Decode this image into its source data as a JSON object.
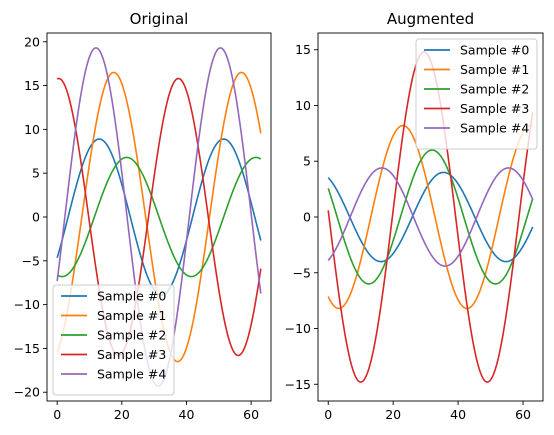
{
  "chart_data": [
    {
      "type": "line",
      "title": "Original",
      "xlim": [
        -3.15,
        66.15
      ],
      "ylim": [
        -21,
        21
      ],
      "xticks": [
        0,
        20,
        40,
        60
      ],
      "yticks": [
        -20,
        -15,
        -10,
        -5,
        0,
        5,
        10,
        15,
        20
      ],
      "xtick_labels": [
        "0",
        "20",
        "40",
        "60"
      ],
      "ytick_labels": [
        "−20",
        "−15",
        "−10",
        "−5",
        "0",
        "5",
        "10",
        "15",
        "20"
      ],
      "legend_position": "lower-left",
      "grid": false,
      "series": [
        {
          "name": "Sample #0",
          "color": "#1f77b4",
          "amplitude": 8.9,
          "period": 38.5,
          "peak_x": 13,
          "offset": 0
        },
        {
          "name": "Sample #1",
          "color": "#ff7f0e",
          "amplitude": 16.5,
          "period": 39.5,
          "peak_x": 17.5,
          "offset": 0
        },
        {
          "name": "Sample #2",
          "color": "#2ca02c",
          "amplitude": 6.8,
          "period": 40,
          "peak_x": 21.5,
          "offset": 0
        },
        {
          "name": "Sample #3",
          "color": "#d62728",
          "amplitude": 15.8,
          "period": 37,
          "peak_x": 0.5,
          "offset": 0
        },
        {
          "name": "Sample #4",
          "color": "#9467bd",
          "amplitude": 19.3,
          "period": 38.5,
          "peak_x": 12,
          "offset": 0
        }
      ]
    },
    {
      "type": "line",
      "title": "Augmented",
      "xlim": [
        -3.15,
        66.15
      ],
      "ylim": [
        -16.5,
        16.5
      ],
      "xticks": [
        0,
        20,
        40,
        60
      ],
      "yticks": [
        -15,
        -10,
        -5,
        0,
        5,
        10,
        15
      ],
      "xtick_labels": [
        "0",
        "20",
        "40",
        "60"
      ],
      "ytick_labels": [
        "−15",
        "−10",
        "−5",
        "0",
        "5",
        "10",
        "15"
      ],
      "legend_position": "top-right",
      "grid": false,
      "series": [
        {
          "name": "Sample #0",
          "color": "#1f77b4",
          "amplitude": 4.0,
          "period": 38.5,
          "peak_x": 35.5,
          "offset": 0
        },
        {
          "name": "Sample #1",
          "color": "#ff7f0e",
          "amplitude": 8.2,
          "period": 39.5,
          "peak_x": 23,
          "offset": 0
        },
        {
          "name": "Sample #2",
          "color": "#2ca02c",
          "amplitude": 6.0,
          "period": 39,
          "peak_x": 32,
          "offset": 0
        },
        {
          "name": "Sample #3",
          "color": "#d62728",
          "amplitude": 14.8,
          "period": 39,
          "peak_x": 29.5,
          "offset": 0
        },
        {
          "name": "Sample #4",
          "color": "#9467bd",
          "amplitude": 4.4,
          "period": 39,
          "peak_x": 16.5,
          "offset": 0
        }
      ]
    }
  ]
}
